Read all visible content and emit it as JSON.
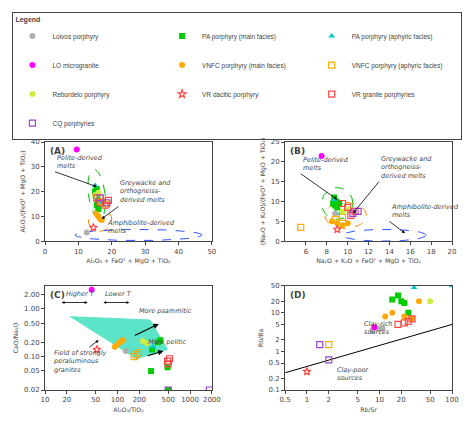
{
  "chart_data": [
    {
      "type": "scatter",
      "panel_label": "(A)",
      "xlabel": "Al₂O₃ + FeOᵀ + MgO + TiO₂",
      "ylabel": "Al₂O₃/(FeOᵀ + MgO + TiO₂)",
      "xlim": [
        0,
        50
      ],
      "ylim": [
        0,
        40
      ],
      "xticks": [
        0,
        10,
        20,
        30,
        40,
        50
      ],
      "yticks": [
        0,
        10,
        20,
        30,
        40
      ],
      "grid": false,
      "legend": "top",
      "legend_title": "Legend",
      "series": [
        {
          "name": "Loivos porphyry",
          "color": "#b0b0b0",
          "marker": "circle",
          "x": [
            12.5
          ],
          "y": [
            3.5
          ]
        },
        {
          "name": "PA porphyry (main facies)",
          "color": "#00cc00",
          "marker": "square",
          "x": [
            15.5,
            15.0,
            15.2,
            15.8,
            15.5,
            16.0
          ],
          "y": [
            21.0,
            20.0,
            18.5,
            16.5,
            14.5,
            13.0
          ]
        },
        {
          "name": "PA porphyry (aphyric facies)",
          "color": "#00cccc",
          "marker": "triangle-up",
          "x": [
            15.0,
            16.5
          ],
          "y": [
            22.5,
            15.5
          ]
        },
        {
          "name": "LO microgranite",
          "color": "#ff00ff",
          "marker": "circle",
          "x": [
            9.5
          ],
          "y": [
            37.0
          ]
        },
        {
          "name": "VNFC porphyry (main facies)",
          "color": "#ffaa00",
          "marker": "circle",
          "x": [
            15.5,
            16.0,
            16.5,
            17.0
          ],
          "y": [
            11.0,
            10.0,
            9.0,
            8.5
          ]
        },
        {
          "name": "VNFC porphyry (aphyric facies)",
          "color": "#ffaa00",
          "marker": "square-open",
          "x": [
            16.5,
            17.0,
            18.5
          ],
          "y": [
            17.5,
            16.0,
            15.0
          ]
        },
        {
          "name": "Rebordelo porphyry",
          "color": "#ccee44",
          "marker": "circle",
          "x": [
            15.0,
            16.0
          ],
          "y": [
            18.5,
            19.5
          ]
        },
        {
          "name": "VR dacitic porphyry",
          "color": "#ff4444",
          "marker": "star-open",
          "x": [
            14.5
          ],
          "y": [
            5.5
          ]
        },
        {
          "name": "VR granite porphyries",
          "color": "#ff4444",
          "marker": "square-open",
          "x": [
            15.5,
            16.5,
            18.0,
            19.0
          ],
          "y": [
            17.5,
            15.5,
            14.5,
            16.5
          ]
        },
        {
          "name": "CQ porphyries",
          "color": "#9944cc",
          "marker": "square-open",
          "x": [
            16.5,
            18.5
          ],
          "y": [
            17.5,
            15.5
          ]
        }
      ],
      "ellipses": [
        {
          "cx": 15.5,
          "cy": 19.0,
          "w": 5.0,
          "h": 20.0,
          "angle": 5,
          "color": "#00bb00",
          "line_style": "dashed"
        },
        {
          "cx": 16.5,
          "cy": 8.5,
          "w": 7.0,
          "h": 9.0,
          "angle": -5,
          "color": "#ff8800",
          "line_style": "dashed"
        },
        {
          "cx": 28.0,
          "cy": 2.5,
          "w": 38.0,
          "h": 4.5,
          "angle": 0,
          "color": "#3355ff",
          "line_style": "dashed"
        }
      ],
      "annotations": [
        {
          "text": "Pelite-derived\nmelts",
          "x": 15.5,
          "y": 22,
          "text_x": 3,
          "text_y": 28
        },
        {
          "text": "Greywacke and\northogneiss-\nderived melts",
          "x": 17,
          "y": 9,
          "text_x": 22,
          "text_y": 14
        },
        {
          "text": "Amphibolite-derived\nmelts",
          "x": 25,
          "y": 3,
          "text_x": 18,
          "text_y": 1.5
        }
      ]
    },
    {
      "type": "scatter",
      "panel_label": "(B)",
      "xlabel": "Na₂O + K₂O + FeOᵀ + MgO + TiO₂",
      "ylabel": "(Na₂O + K₂O)/(FeOᵀ + MgO + TiO₂)",
      "xlim": [
        4,
        20
      ],
      "ylim": [
        0,
        25
      ],
      "xticks": [
        6,
        8,
        10,
        12,
        14,
        16,
        18,
        20
      ],
      "yticks": [
        0,
        5,
        10,
        15,
        20,
        25
      ],
      "grid": false,
      "series": [
        {
          "name": "Loivos porphyry",
          "color": "#b0b0b0",
          "marker": "circle",
          "x": [
            8.8
          ],
          "y": [
            7.0
          ]
        },
        {
          "name": "PA porphyry (main facies)",
          "color": "#00cc00",
          "marker": "square",
          "x": [
            8.7,
            8.9,
            8.6,
            8.8,
            9.0,
            9.2
          ],
          "y": [
            11.0,
            10.0,
            9.5,
            9.0,
            8.5,
            9.5
          ]
        },
        {
          "name": "PA porphyry (aphyric facies)",
          "color": "#00cccc",
          "marker": "triangle-up",
          "x": [
            8.7,
            9.3
          ],
          "y": [
            10.5,
            7.0
          ]
        },
        {
          "name": "LO microgranite",
          "color": "#ff00ff",
          "marker": "circle",
          "x": [
            7.5
          ],
          "y": [
            21.5
          ]
        },
        {
          "name": "VNFC porphyry (main facies)",
          "color": "#ffaa00",
          "marker": "circle",
          "x": [
            8.5,
            9.0,
            9.5,
            10.0
          ],
          "y": [
            5.0,
            4.5,
            4.0,
            4.5
          ]
        },
        {
          "name": "VNFC porphyry (aphyric facies)",
          "color": "#ffaa00",
          "marker": "square-open",
          "x": [
            5.5,
            8.8,
            9.5
          ],
          "y": [
            3.5,
            5.5,
            6.0
          ]
        },
        {
          "name": "Rebordelo porphyry",
          "color": "#ccee44",
          "marker": "circle",
          "x": [
            9.5,
            10.0
          ],
          "y": [
            7.5,
            8.0
          ]
        },
        {
          "name": "VR dacitic porphyry",
          "color": "#ff4444",
          "marker": "star-open",
          "x": [
            9.0
          ],
          "y": [
            3.0
          ]
        },
        {
          "name": "VR granite porphyries",
          "color": "#ff4444",
          "marker": "square-open",
          "x": [
            9.5,
            10.0,
            10.3,
            10.7
          ],
          "y": [
            9.5,
            8.5,
            6.5,
            7.5
          ]
        },
        {
          "name": "CQ porphyries",
          "color": "#9944cc",
          "marker": "square-open",
          "x": [
            10.5,
            11.0
          ],
          "y": [
            7.0,
            7.5
          ]
        }
      ],
      "ellipses": [
        {
          "cx": 9.0,
          "cy": 9.5,
          "w": 3.0,
          "h": 8.0,
          "angle": 0,
          "color": "#00bb00",
          "line_style": "dashed"
        },
        {
          "cx": 9.8,
          "cy": 6.5,
          "w": 4.0,
          "h": 6.5,
          "angle": 0,
          "color": "#ff8800",
          "line_style": "dashed"
        },
        {
          "cx": 13.5,
          "cy": 1.5,
          "w": 8.0,
          "h": 3.0,
          "angle": 0,
          "color": "#3355ff",
          "line_style": "dashed"
        }
      ],
      "annotations": [
        {
          "text": "Pelite-derived\nmelts",
          "x": 9.0,
          "y": 10.5,
          "text_x": 5.5,
          "text_y": 17
        },
        {
          "text": "Greywacke and\northogneiss-\nderived melts",
          "x": 10.5,
          "y": 7,
          "text_x": 13,
          "text_y": 15
        },
        {
          "text": "Amphibolite-derived\nmelts",
          "x": 15.5,
          "y": 2.0,
          "text_x": 14,
          "text_y": 5
        }
      ]
    },
    {
      "type": "scatter",
      "panel_label": "(C)",
      "log": true,
      "xlabel": "Al₂O₃/TiO₂",
      "ylabel": "CaO/Na₂O",
      "xlim": [
        10,
        2000
      ],
      "ylim": [
        0.02,
        3.0
      ],
      "xticks": [
        10,
        20,
        50,
        100,
        200,
        500,
        1000,
        2000
      ],
      "yticks": [
        0.02,
        0.05,
        {
          "value": 0.1,
          "label": "0.10"
        },
        {
          "value": 0.2,
          "label": "0.20"
        },
        {
          "value": 0.5,
          "label": "0.50"
        },
        {
          "value": 1,
          "label": "1.00"
        },
        {
          "value": 2,
          "label": "2.00"
        }
      ],
      "grid": false,
      "polygon": {
        "x": [
          22,
          280,
          490,
          180
        ],
        "y": [
          0.68,
          0.58,
          0.14,
          0.09
        ],
        "color": "#40e0c0"
      },
      "series": [
        {
          "name": "Loivos porphyry",
          "color": "#b0b0b0",
          "marker": "circle",
          "x": [
            130
          ],
          "y": [
            0.13
          ]
        },
        {
          "name": "PA porphyry (main facies)",
          "color": "#00cc00",
          "marker": "square",
          "x": [
            300,
            360,
            390,
            290,
            490,
            500
          ],
          "y": [
            0.14,
            0.2,
            0.22,
            0.05,
            0.06,
            0.02
          ]
        },
        {
          "name": "PA porphyry (aphyric facies)",
          "color": "#00cccc",
          "marker": "triangle-up",
          "x": [
            240,
            310
          ],
          "y": [
            0.21,
            0.16
          ]
        },
        {
          "name": "LO microgranite",
          "color": "#ff00ff",
          "marker": "circle",
          "x": [
            44
          ],
          "y": [
            2.5
          ]
        },
        {
          "name": "VNFC porphyry (main facies)",
          "color": "#ffaa00",
          "marker": "circle",
          "x": [
            100,
            108,
            92,
            118
          ],
          "y": [
            0.18,
            0.2,
            0.16,
            0.22
          ]
        },
        {
          "name": "VNFC porphyry (aphyric facies)",
          "color": "#ffaa00",
          "marker": "square-open",
          "x": [
            170,
            182,
            195
          ],
          "y": [
            0.1,
            0.11,
            0.12
          ]
        },
        {
          "name": "Rebordelo porphyry",
          "color": "#ccee44",
          "marker": "circle",
          "x": [
            225,
            255
          ],
          "y": [
            0.21,
            0.19
          ]
        },
        {
          "name": "VR dacitic porphyry",
          "color": "#ff4444",
          "marker": "star-open",
          "x": [
            52
          ],
          "y": [
            0.14
          ]
        },
        {
          "name": "VR granite porphyries",
          "color": "#ff4444",
          "marker": "square-open",
          "x": [
            490,
            520,
            500
          ],
          "y": [
            0.08,
            0.09,
            0.07
          ]
        },
        {
          "name": "CQ porphyries",
          "color": "#9944cc",
          "marker": "square-open",
          "x": [
            1850,
            500
          ],
          "y": [
            0.02,
            0.02
          ]
        }
      ],
      "annotations": [
        {
          "text": "Field of strongly\nperaluminous\ngranites",
          "x": 55,
          "y": 0.22,
          "text_x": 12,
          "text_y": 0.04
        }
      ],
      "arrows": [
        {
          "x": 370,
          "y": 0.48,
          "from_x": 160,
          "from_y": 0.26
        },
        {
          "x": 430,
          "y": 0.13,
          "from_x": 240,
          "from_y": 0.1
        }
      ],
      "texts": [
        {
          "text": "More psammitic",
          "x": 185,
          "y": 0.38
        },
        {
          "text": "More pelitic",
          "x": 250,
          "y": 0.115
        }
      ],
      "axis_texts": [
        {
          "text": "Higher T",
          "arrow": "both"
        },
        {
          "text": "Lower T",
          "arrow": "both"
        }
      ]
    },
    {
      "type": "scatter",
      "panel_label": "(D)",
      "log": true,
      "xlabel": "Rb/Sr",
      "ylabel": "Rb/Ba",
      "xlim": [
        0.5,
        100.0
      ],
      "ylim": [
        0.1,
        50.0
      ],
      "xticks": [
        0.5,
        1,
        2,
        5,
        10,
        20,
        50,
        100
      ],
      "yticks": [
        0.1,
        0.2,
        0.5,
        1,
        2,
        5,
        10,
        20,
        50
      ],
      "grid": false,
      "line": {
        "x": [
          0.5,
          100.0
        ],
        "y": [
          0.28,
          5.0
        ],
        "color": "#000000"
      },
      "series": [
        {
          "name": "Loivos porphyry",
          "color": "#b0b0b0",
          "marker": "circle",
          "x": [
            8.0,
            10.0,
            11.0
          ],
          "y": [
            3.5,
            3.8,
            4.0
          ]
        },
        {
          "name": "PA porphyry (main facies)",
          "color": "#00cc00",
          "marker": "square",
          "x": [
            15.0,
            18.0,
            20.0,
            22.0,
            25.0
          ],
          "y": [
            22.0,
            28.0,
            20.0,
            18.0,
            10.0
          ]
        },
        {
          "name": "PA porphyry (aphyric facies)",
          "color": "#00cccc",
          "marker": "triangle-up",
          "x": [
            30.0,
            100.0
          ],
          "y": [
            45.0,
            50.0
          ]
        },
        {
          "name": "LO microgranite",
          "color": "#ff00ff",
          "marker": "circle",
          "x": [
            8.5
          ],
          "y": [
            4.2
          ]
        },
        {
          "name": "VNFC porphyry (main facies)",
          "color": "#ffaa00",
          "marker": "circle",
          "x": [
            12.0,
            15.0,
            22.0,
            28.0,
            35.0
          ],
          "y": [
            8.0,
            10.0,
            8.0,
            7.0,
            20.0
          ]
        },
        {
          "name": "VNFC porphyry (aphyric facies)",
          "color": "#ffaa00",
          "marker": "square-open",
          "x": [
            2.0
          ],
          "y": [
            1.5
          ]
        },
        {
          "name": "Rebordelo porphyry",
          "color": "#ccee44",
          "marker": "circle",
          "x": [
            50.0
          ],
          "y": [
            20.0
          ]
        },
        {
          "name": "VR dacitic porphyry",
          "color": "#ff4444",
          "marker": "star-open",
          "x": [
            1.0
          ],
          "y": [
            0.3
          ]
        },
        {
          "name": "VR granite porphyries",
          "color": "#ff4444",
          "marker": "square-open",
          "x": [
            18.0,
            22.0,
            25.0,
            28.0
          ],
          "y": [
            5.0,
            5.5,
            6.0,
            7.0
          ]
        },
        {
          "name": "CQ porphyries",
          "color": "#9944cc",
          "marker": "square-open",
          "x": [
            1.5,
            2.0
          ],
          "y": [
            1.5,
            0.6
          ]
        }
      ],
      "axis_texts": [
        {
          "text": "Clay-rich\nsources"
        },
        {
          "text": "Clay-poor\nsources"
        }
      ]
    }
  ]
}
